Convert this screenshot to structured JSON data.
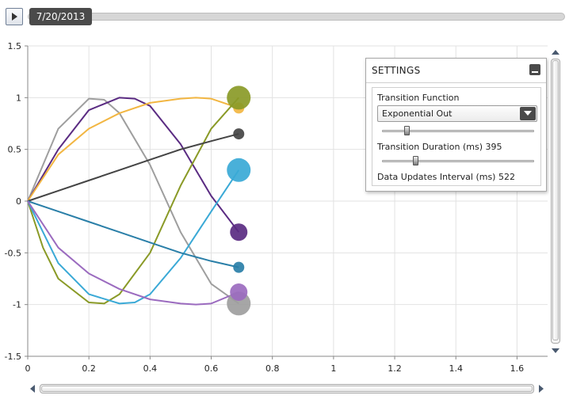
{
  "playback": {
    "date_label": "7/20/2013",
    "progress_fraction": 0.0,
    "play_icon": "play-icon"
  },
  "settings": {
    "title": "SETTINGS",
    "transition_function_label": "Transition Function",
    "transition_function_value": "Exponential Out",
    "transition_function_slider_fraction": 0.16,
    "transition_duration_label": "Transition Duration (ms)",
    "transition_duration_value": "395",
    "transition_duration_slider_fraction": 0.22,
    "data_updates_label": "Data Updates Interval (ms)",
    "data_updates_value": "522"
  },
  "chart_data": {
    "type": "line",
    "xlim": [
      0,
      1.7
    ],
    "ylim": [
      -1.5,
      1.5
    ],
    "x_ticks": [
      "0",
      "0.2",
      "0.4",
      "0.6",
      "0.8",
      "1",
      "1.2",
      "1.4",
      "1.6"
    ],
    "y_ticks": [
      "1.5",
      "1",
      "0.5",
      "0",
      "-0.5",
      "-1",
      "-1.5"
    ],
    "grid": true,
    "series": [
      {
        "color": "#9e9e9e",
        "x": [
          0,
          0.1,
          0.2,
          0.25,
          0.3,
          0.4,
          0.5,
          0.6,
          0.69
        ],
        "y": [
          0,
          0.7,
          0.99,
          0.98,
          0.85,
          0.35,
          -0.3,
          -0.8,
          -0.99
        ],
        "bubble": {
          "x": 0.69,
          "y": -0.99,
          "size": "large"
        }
      },
      {
        "color": "#5a2b82",
        "x": [
          0,
          0.1,
          0.2,
          0.3,
          0.35,
          0.4,
          0.5,
          0.6,
          0.69
        ],
        "y": [
          0,
          0.5,
          0.88,
          1.0,
          0.99,
          0.92,
          0.55,
          0.05,
          -0.3
        ],
        "bubble": {
          "x": 0.69,
          "y": -0.3,
          "size": "medium"
        }
      },
      {
        "color": "#f2b642",
        "x": [
          0,
          0.1,
          0.2,
          0.3,
          0.4,
          0.5,
          0.55,
          0.6,
          0.69
        ],
        "y": [
          0,
          0.45,
          0.7,
          0.85,
          0.95,
          0.99,
          1.0,
          0.99,
          0.9
        ],
        "bubble": {
          "x": 0.69,
          "y": 0.9,
          "size": "small"
        }
      },
      {
        "color": "#8a9a27",
        "x": [
          0,
          0.05,
          0.1,
          0.2,
          0.25,
          0.3,
          0.4,
          0.5,
          0.6,
          0.69
        ],
        "y": [
          0,
          -0.45,
          -0.75,
          -0.98,
          -0.99,
          -0.9,
          -0.5,
          0.15,
          0.7,
          1.0
        ],
        "bubble": {
          "x": 0.69,
          "y": 1.0,
          "size": "large"
        }
      },
      {
        "color": "#444444",
        "x": [
          0,
          0.1,
          0.2,
          0.3,
          0.4,
          0.5,
          0.6,
          0.69
        ],
        "y": [
          0,
          0.1,
          0.2,
          0.3,
          0.4,
          0.5,
          0.58,
          0.65
        ],
        "bubble": {
          "x": 0.69,
          "y": 0.65,
          "size": "small"
        }
      },
      {
        "color": "#3aa9d6",
        "x": [
          0,
          0.1,
          0.2,
          0.3,
          0.35,
          0.4,
          0.5,
          0.6,
          0.69
        ],
        "y": [
          0,
          -0.6,
          -0.9,
          -0.99,
          -0.98,
          -0.9,
          -0.55,
          -0.1,
          0.3
        ],
        "bubble": {
          "x": 0.69,
          "y": 0.3,
          "size": "large"
        }
      },
      {
        "color": "#2a7fa8",
        "x": [
          0,
          0.1,
          0.2,
          0.3,
          0.4,
          0.5,
          0.6,
          0.69
        ],
        "y": [
          0,
          -0.1,
          -0.2,
          -0.3,
          -0.4,
          -0.5,
          -0.58,
          -0.64
        ],
        "bubble": {
          "x": 0.69,
          "y": -0.64,
          "size": "small"
        }
      },
      {
        "color": "#9b6bbf",
        "x": [
          0,
          0.1,
          0.2,
          0.3,
          0.4,
          0.5,
          0.55,
          0.6,
          0.69
        ],
        "y": [
          0,
          -0.45,
          -0.7,
          -0.85,
          -0.95,
          -0.99,
          -1.0,
          -0.99,
          -0.88
        ],
        "bubble": {
          "x": 0.69,
          "y": -0.88,
          "size": "medium"
        }
      }
    ]
  }
}
